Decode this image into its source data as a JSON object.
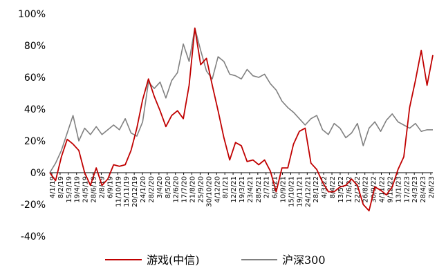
{
  "chart_data": {
    "type": "line",
    "ylim": [
      -40,
      100
    ],
    "yticks": [
      -40,
      -20,
      0,
      20,
      40,
      60,
      80,
      100
    ],
    "ytick_labels": [
      "-40%",
      "-20%",
      "0%",
      "20%",
      "40%",
      "60%",
      "80%",
      "100%"
    ],
    "grid": false,
    "legend_position": "bottom",
    "x_tick_labels": [
      "4/1/19",
      "8/2/19",
      "15/3/19",
      "19/4/19",
      "24/5/19",
      "28/6/19",
      "2/8/19",
      "6/9/19",
      "11/10/19",
      "15/11/19",
      "20/12/19",
      "24/1/20",
      "28/2/20",
      "3/4/20",
      "8/5/20",
      "12/6/20",
      "17/7/20",
      "21/8/20",
      "25/9/20",
      "30/10/20",
      "4/12/20",
      "8/1/21",
      "12/2/21",
      "19/3/21",
      "23/4/21",
      "28/5/21",
      "2/7/21",
      "6/8/21",
      "10/9/21",
      "15/10/21",
      "19/11/21",
      "24/12/21",
      "28/1/22",
      "4/3/22",
      "8/4/22",
      "13/5/22",
      "17/6/22",
      "22/7/22",
      "26/8/22",
      "30/9/22",
      "4/11/22",
      "9/12/22",
      "13/1/23",
      "17/2/23",
      "24/3/23",
      "28/4/23",
      "2/6/23"
    ],
    "series": [
      {
        "name": "游戏(中信)",
        "color": "#c00000",
        "values": [
          0,
          -5,
          10,
          21,
          18,
          14,
          0,
          -8,
          3,
          -8,
          -4,
          5,
          4,
          5,
          14,
          28,
          46,
          59,
          48,
          39,
          29,
          36,
          39,
          34,
          55,
          91,
          68,
          72,
          55,
          39,
          22,
          8,
          19,
          17,
          7,
          8,
          5,
          8,
          1,
          -12,
          3,
          3,
          18,
          26,
          28,
          6,
          2,
          -6,
          -12,
          -12,
          -9,
          -8,
          -4,
          -8,
          -20,
          -24,
          -9,
          -11,
          -14,
          -9,
          2,
          10,
          41,
          58,
          77,
          55,
          74
        ]
      },
      {
        "name": "沪深300",
        "color": "#808080",
        "values": [
          0,
          6,
          14,
          25,
          36,
          20,
          28,
          24,
          29,
          24,
          27,
          30,
          27,
          34,
          25,
          23,
          32,
          57,
          53,
          57,
          47,
          58,
          63,
          81,
          70,
          91,
          77,
          64,
          59,
          73,
          70,
          62,
          61,
          59,
          65,
          61,
          60,
          62,
          56,
          52,
          45,
          41,
          38,
          34,
          30,
          34,
          36,
          27,
          24,
          31,
          28,
          22,
          25,
          31,
          17,
          28,
          32,
          26,
          33,
          37,
          32,
          30,
          28,
          31,
          26,
          27,
          27
        ]
      }
    ]
  }
}
